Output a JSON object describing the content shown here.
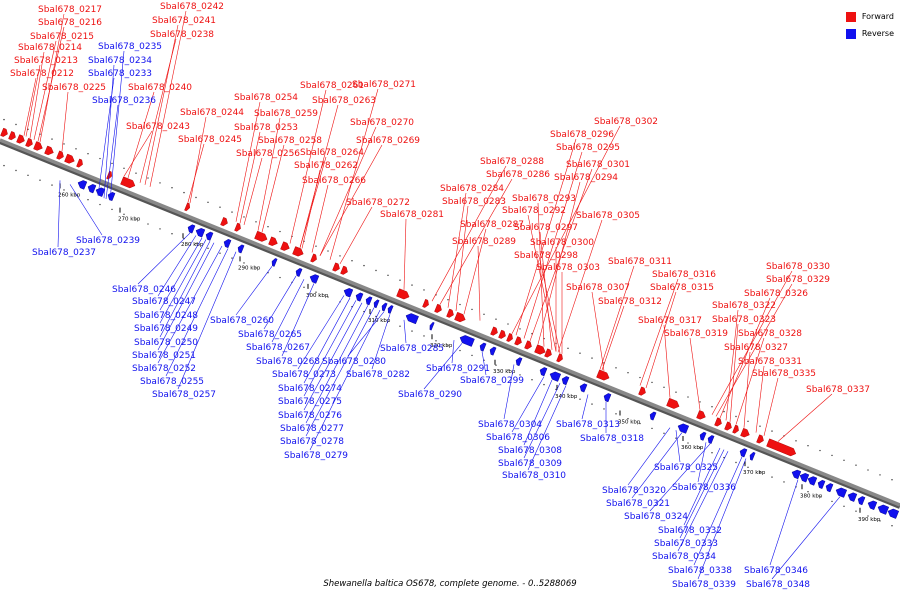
{
  "caption": "Shewanella baltica OS678, complete genome. - 0..5288069",
  "legend": [
    {
      "label": "Forward",
      "color": "#ee1111"
    },
    {
      "label": "Reverse",
      "color": "#1111ee"
    }
  ],
  "colors": {
    "forward": "#ee1111",
    "reverse": "#1111ee",
    "backbone": "#888888"
  },
  "ticks": [
    "260 kbp",
    "270 kbp",
    "280 kbp",
    "290 kbp",
    "300 kbp",
    "310 kbp",
    "320 kbp",
    "330 kbp",
    "340 kbp",
    "350 kbp",
    "360 kbp",
    "370 kbp",
    "380 kbp",
    "390 kbp"
  ],
  "forward_labels": [
    "Sbal678_0217",
    "Sbal678_0216",
    "Sbal678_0215",
    "Sbal678_0214",
    "Sbal678_0213",
    "Sbal678_0212",
    "Sbal678_0225",
    "Sbal678_0242",
    "Sbal678_0241",
    "Sbal678_0238",
    "Sbal678_0240",
    "Sbal678_0243",
    "Sbal678_0244",
    "Sbal678_0245",
    "Sbal678_0254",
    "Sbal678_0253",
    "Sbal678_0256",
    "Sbal678_0259",
    "Sbal678_0258",
    "Sbal678_0261",
    "Sbal678_0263",
    "Sbal678_0264",
    "Sbal678_0262",
    "Sbal678_0271",
    "Sbal678_0270",
    "Sbal678_0269",
    "Sbal678_0266",
    "Sbal678_0272",
    "Sbal678_0281",
    "Sbal678_0288",
    "Sbal678_0286",
    "Sbal678_0284",
    "Sbal678_0283",
    "Sbal678_0287",
    "Sbal678_0289",
    "Sbal678_0302",
    "Sbal678_0296",
    "Sbal678_0295",
    "Sbal678_0301",
    "Sbal678_0294",
    "Sbal678_0293",
    "Sbal678_0292",
    "Sbal678_0297",
    "Sbal678_0305",
    "Sbal678_0300",
    "Sbal678_0298",
    "Sbal678_0303",
    "Sbal678_0311",
    "Sbal678_0307",
    "Sbal678_0316",
    "Sbal678_0315",
    "Sbal678_0312",
    "Sbal678_0317",
    "Sbal678_0319",
    "Sbal678_0330",
    "Sbal678_0329",
    "Sbal678_0326",
    "Sbal678_0322",
    "Sbal678_0323",
    "Sbal678_0328",
    "Sbal678_0327",
    "Sbal678_0331",
    "Sbal678_0335",
    "Sbal678_0337"
  ],
  "reverse_labels": [
    "Sbal678_0235",
    "Sbal678_0234",
    "Sbal678_0233",
    "Sbal678_0236",
    "Sbal678_0239",
    "Sbal678_0237",
    "Sbal678_0246",
    "Sbal678_0247",
    "Sbal678_0248",
    "Sbal678_0249",
    "Sbal678_0250",
    "Sbal678_0251",
    "Sbal678_0252",
    "Sbal678_0255",
    "Sbal678_0257",
    "Sbal678_0260",
    "Sbal678_0265",
    "Sbal678_0267",
    "Sbal678_0268",
    "Sbal678_0273",
    "Sbal678_0274",
    "Sbal678_0275",
    "Sbal678_0276",
    "Sbal678_0277",
    "Sbal678_0278",
    "Sbal678_0279",
    "Sbal678_0280",
    "Sbal678_0282",
    "Sbal678_0285",
    "Sbal678_0291",
    "Sbal678_0290",
    "Sbal678_0299",
    "Sbal678_0304",
    "Sbal678_0306",
    "Sbal678_0308",
    "Sbal678_0309",
    "Sbal678_0310",
    "Sbal678_0313",
    "Sbal678_0318",
    "Sbal678_0325",
    "Sbal678_0320",
    "Sbal678_0321",
    "Sbal678_0336",
    "Sbal678_0324",
    "Sbal678_0332",
    "Sbal678_0333",
    "Sbal678_0334",
    "Sbal678_0338",
    "Sbal678_0339",
    "Sbal678_0346",
    "Sbal678_0348"
  ]
}
